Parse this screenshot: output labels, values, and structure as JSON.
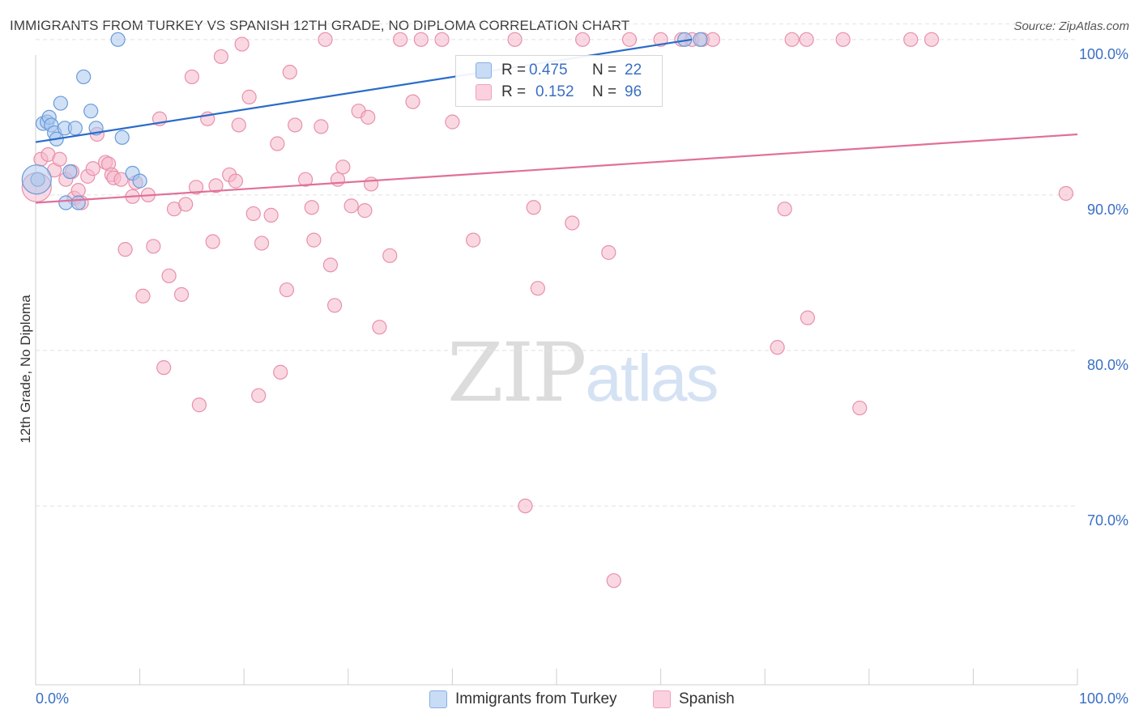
{
  "header": {
    "title": "IMMIGRANTS FROM TURKEY VS SPANISH 12TH GRADE, NO DIPLOMA CORRELATION CHART",
    "source": "Source: ZipAtlas.com"
  },
  "watermark": {
    "zip": "ZIP",
    "atlas": "atlas"
  },
  "legend": {
    "rows": [
      {
        "r_label": "R =",
        "r_value": "0.475",
        "n_label": "N =",
        "n_value": "22",
        "color": "#aac8ee"
      },
      {
        "r_label": "R =",
        "r_value": "0.152",
        "n_label": "N =",
        "n_value": "96",
        "color": "#f6b8cb"
      }
    ]
  },
  "bottom_legend": [
    {
      "label": "Immigrants from Turkey",
      "color": "#aac8ee"
    },
    {
      "label": "Spanish",
      "color": "#f6b8cb"
    }
  ],
  "chart_data": {
    "type": "scatter",
    "title": "IMMIGRANTS FROM TURKEY VS SPANISH 12TH GRADE, NO DIPLOMA CORRELATION CHART",
    "xlabel": "",
    "ylabel": "12th Grade, No Diploma",
    "xlim": [
      0,
      100
    ],
    "ylim": [
      58.5,
      101.5
    ],
    "x_tick_labels": [
      {
        "value": 0,
        "label": "0.0%"
      },
      {
        "value": 100,
        "label": "100.0%"
      }
    ],
    "y_ticks": [
      {
        "value": 100,
        "label": "100.0%"
      },
      {
        "value": 90,
        "label": "90.0%"
      },
      {
        "value": 80,
        "label": "80.0%"
      },
      {
        "value": 70,
        "label": "70.0%"
      }
    ],
    "colors": {
      "turkey_fill": "#aac8ee",
      "turkey_stroke": "#6b9ad8",
      "turkey_line": "#2a6cc9",
      "spanish_fill": "#f6b8cb",
      "spanish_stroke": "#e890aa",
      "spanish_line": "#e0709a",
      "axis_label": "#3a6fc4",
      "grid": "#e2e2e2"
    },
    "series": [
      {
        "name": "Immigrants from Turkey",
        "R": 0.475,
        "N": 22,
        "points": [
          [
            0.2,
            91.0
          ],
          [
            0.7,
            94.6
          ],
          [
            1.1,
            94.7
          ],
          [
            1.3,
            95.0
          ],
          [
            1.5,
            94.5
          ],
          [
            1.8,
            94.0
          ],
          [
            2.0,
            93.6
          ],
          [
            2.4,
            95.9
          ],
          [
            2.8,
            94.3
          ],
          [
            2.9,
            89.5
          ],
          [
            3.3,
            91.5
          ],
          [
            3.8,
            94.3
          ],
          [
            4.1,
            89.5
          ],
          [
            4.6,
            97.6
          ],
          [
            5.3,
            95.4
          ],
          [
            5.8,
            94.3
          ],
          [
            7.9,
            100.0
          ],
          [
            8.3,
            93.7
          ],
          [
            9.3,
            91.4
          ],
          [
            10.0,
            90.9
          ],
          [
            62.3,
            100.0
          ],
          [
            63.8,
            100.0
          ]
        ],
        "big_points": [
          [
            0.1,
            91.0
          ]
        ],
        "trend": {
          "x": [
            0,
            63
          ],
          "y": [
            93.4,
            100.0
          ]
        }
      },
      {
        "name": "Spanish",
        "R": 0.152,
        "N": 96,
        "points": [
          [
            0.5,
            92.3
          ],
          [
            1.2,
            92.6
          ],
          [
            1.8,
            91.6
          ],
          [
            2.3,
            92.3
          ],
          [
            2.9,
            91.0
          ],
          [
            3.5,
            91.5
          ],
          [
            3.7,
            89.8
          ],
          [
            4.1,
            90.3
          ],
          [
            4.4,
            89.5
          ],
          [
            5.0,
            91.2
          ],
          [
            5.5,
            91.7
          ],
          [
            5.9,
            93.9
          ],
          [
            6.7,
            92.1
          ],
          [
            7.0,
            92.0
          ],
          [
            7.3,
            91.3
          ],
          [
            7.5,
            91.1
          ],
          [
            8.2,
            91.0
          ],
          [
            8.6,
            86.5
          ],
          [
            9.3,
            89.9
          ],
          [
            9.6,
            90.8
          ],
          [
            10.3,
            83.5
          ],
          [
            10.8,
            90.0
          ],
          [
            11.3,
            86.7
          ],
          [
            11.9,
            94.9
          ],
          [
            12.3,
            78.9
          ],
          [
            12.8,
            84.8
          ],
          [
            13.3,
            89.1
          ],
          [
            14.0,
            83.6
          ],
          [
            14.4,
            89.4
          ],
          [
            15.0,
            97.6
          ],
          [
            15.4,
            90.5
          ],
          [
            15.7,
            76.5
          ],
          [
            16.5,
            94.9
          ],
          [
            17.0,
            87.0
          ],
          [
            17.3,
            90.6
          ],
          [
            17.8,
            98.9
          ],
          [
            18.6,
            91.3
          ],
          [
            19.2,
            90.9
          ],
          [
            19.5,
            94.5
          ],
          [
            19.8,
            99.7
          ],
          [
            20.5,
            96.3
          ],
          [
            20.9,
            88.8
          ],
          [
            21.4,
            77.1
          ],
          [
            21.7,
            86.9
          ],
          [
            22.6,
            88.7
          ],
          [
            23.2,
            93.3
          ],
          [
            23.5,
            78.6
          ],
          [
            24.1,
            83.9
          ],
          [
            24.4,
            97.9
          ],
          [
            24.9,
            94.5
          ],
          [
            25.9,
            91.0
          ],
          [
            26.5,
            89.2
          ],
          [
            26.7,
            87.1
          ],
          [
            27.4,
            94.4
          ],
          [
            27.8,
            100.0
          ],
          [
            28.3,
            85.5
          ],
          [
            28.7,
            82.9
          ],
          [
            29.0,
            91.0
          ],
          [
            29.5,
            91.8
          ],
          [
            30.3,
            89.3
          ],
          [
            31.0,
            95.4
          ],
          [
            31.6,
            89.0
          ],
          [
            31.9,
            95.0
          ],
          [
            32.2,
            90.7
          ],
          [
            33.0,
            81.5
          ],
          [
            34.0,
            86.1
          ],
          [
            35.0,
            100.0
          ],
          [
            36.2,
            96.0
          ],
          [
            37.0,
            100.0
          ],
          [
            39.0,
            100.0
          ],
          [
            40.0,
            94.7
          ],
          [
            42.0,
            87.1
          ],
          [
            46.0,
            100.0
          ],
          [
            47.0,
            70.0
          ],
          [
            47.8,
            89.2
          ],
          [
            48.2,
            84.0
          ],
          [
            51.5,
            88.2
          ],
          [
            52.5,
            100.0
          ],
          [
            55.0,
            86.3
          ],
          [
            55.5,
            65.2
          ],
          [
            57.0,
            100.0
          ],
          [
            60.0,
            100.0
          ],
          [
            62.0,
            100.0
          ],
          [
            63.0,
            100.0
          ],
          [
            64.0,
            100.0
          ],
          [
            65.0,
            100.0
          ],
          [
            71.9,
            89.1
          ],
          [
            71.2,
            80.2
          ],
          [
            72.6,
            100.0
          ],
          [
            74.0,
            100.0
          ],
          [
            74.1,
            82.1
          ],
          [
            77.5,
            100.0
          ],
          [
            79.1,
            76.3
          ],
          [
            84.0,
            100.0
          ],
          [
            86.0,
            100.0
          ],
          [
            98.9,
            90.1
          ]
        ],
        "big_points": [
          [
            0.1,
            90.5
          ]
        ],
        "trend": {
          "x": [
            0,
            100
          ],
          "y": [
            89.5,
            93.9
          ]
        }
      }
    ]
  }
}
